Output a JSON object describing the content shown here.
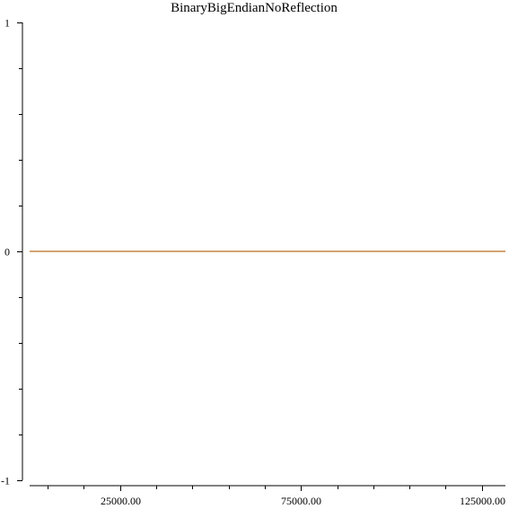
{
  "chart_data": {
    "type": "line",
    "title": "BinaryBigEndianNoReflection",
    "xlabel": "",
    "ylabel": "",
    "xlim": [
      0,
      131500
    ],
    "ylim": [
      -1,
      1
    ],
    "x_ticks": [
      {
        "value": 25000,
        "label": "25000.00"
      },
      {
        "value": 75000,
        "label": "75000.00"
      },
      {
        "value": 125000,
        "label": "125000.00"
      }
    ],
    "x_minor_ticks": [
      5000,
      15000,
      35000,
      45000,
      55000,
      65000,
      85000,
      95000,
      105000,
      115000
    ],
    "y_ticks": [
      {
        "value": 1,
        "label": "1"
      },
      {
        "value": 0,
        "label": "0"
      },
      {
        "value": -1,
        "label": "-1"
      }
    ],
    "y_minor_ticks": [
      0.8,
      0.6,
      0.4,
      0.2,
      -0.2,
      -0.4,
      -0.6,
      -0.8
    ],
    "grid": false,
    "series": [
      {
        "color": "#d4a373",
        "x": [
          0,
          131500
        ],
        "y": [
          0,
          0
        ]
      }
    ]
  }
}
